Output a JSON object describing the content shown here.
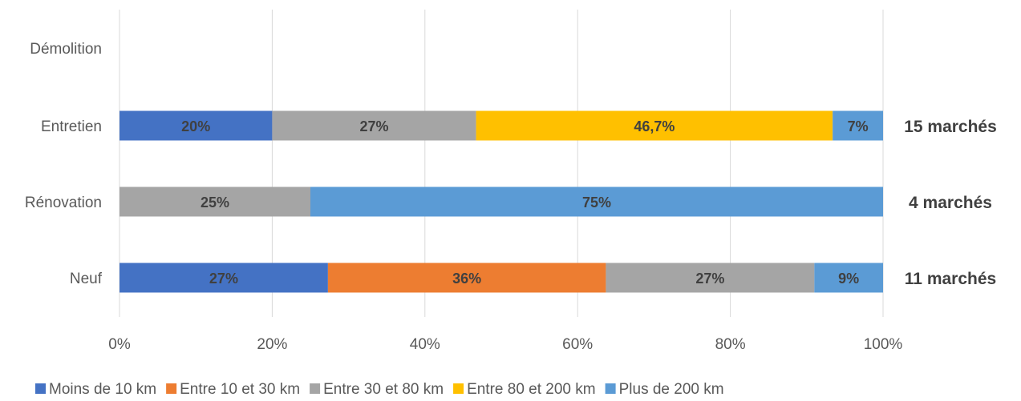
{
  "chart_data": {
    "type": "bar",
    "orientation": "horizontal",
    "stacked": "percent",
    "categories": [
      "Démolition",
      "Entretien",
      "Rénovation",
      "Neuf"
    ],
    "series": [
      {
        "name": "Moins de 10 km",
        "color": "#4472C4",
        "values": [
          0,
          20,
          0,
          27.3
        ],
        "labels": [
          "",
          "20%",
          "",
          "27%"
        ]
      },
      {
        "name": "Entre 10 et 30 km",
        "color": "#ED7D31",
        "values": [
          0,
          0,
          0,
          36.4
        ],
        "labels": [
          "",
          "",
          "",
          "36%"
        ]
      },
      {
        "name": "Entre 30 et 80 km",
        "color": "#A5A5A5",
        "values": [
          0,
          26.7,
          25,
          27.3
        ],
        "labels": [
          "",
          "27%",
          "25%",
          "27%"
        ]
      },
      {
        "name": "Entre 80 et 200 km",
        "color": "#FFC000",
        "values": [
          0,
          46.7,
          0,
          0
        ],
        "labels": [
          "",
          "46,7%",
          "",
          ""
        ]
      },
      {
        "name": "Plus de 200 km",
        "color": "#5B9BD5",
        "values": [
          0,
          6.6,
          75,
          9
        ],
        "labels": [
          "",
          "7%",
          "75%",
          "9%"
        ]
      }
    ],
    "totals": [
      "",
      "15 marchés",
      "4 marchés",
      "11 marchés"
    ],
    "xlim": [
      0,
      100
    ],
    "xticks": [
      "0%",
      "20%",
      "40%",
      "60%",
      "80%",
      "100%"
    ],
    "grid": "vertical",
    "legend": "bottom"
  }
}
